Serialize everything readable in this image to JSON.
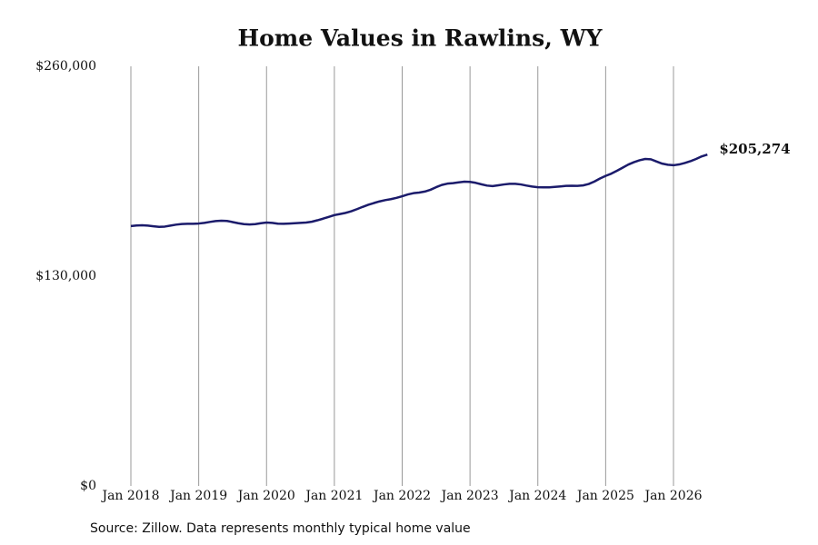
{
  "chart_data": {
    "type": "line",
    "title": "Home Values in Rawlins, WY",
    "source": "Source: Zillow. Data represents monthly typical home value",
    "categories": [
      "Jan 2018",
      null,
      null,
      null,
      null,
      null,
      null,
      null,
      null,
      null,
      null,
      null,
      "Jan 2019",
      null,
      null,
      null,
      null,
      null,
      null,
      null,
      null,
      null,
      null,
      null,
      "Jan 2020",
      null,
      null,
      null,
      null,
      null,
      null,
      null,
      null,
      null,
      null,
      null,
      "Jan 2021",
      null,
      null,
      null,
      null,
      null,
      null,
      null,
      null,
      null,
      null,
      null,
      "Jan 2022",
      null,
      null,
      null,
      null,
      null,
      null,
      null,
      null,
      null,
      null,
      null,
      "Jan 2023",
      null,
      null,
      null,
      null,
      null,
      null,
      null,
      null,
      null,
      null,
      null,
      "Jan 2024",
      null,
      null,
      null,
      null,
      null,
      null,
      null,
      null,
      null,
      null,
      null,
      "Jan 2025",
      null,
      null,
      null,
      null,
      null,
      null,
      null,
      null,
      null,
      null,
      null,
      "Jan 2026",
      null,
      null,
      null,
      null,
      null,
      null
    ],
    "series": [
      {
        "name": "Home value",
        "color": "#1b1b6b",
        "values": [
          161000,
          161400,
          161500,
          161300,
          160900,
          160500,
          160700,
          161300,
          161900,
          162300,
          162400,
          162400,
          162600,
          163000,
          163600,
          164100,
          164300,
          164200,
          163500,
          162800,
          162200,
          162000,
          162200,
          162800,
          163200,
          163000,
          162500,
          162400,
          162600,
          162800,
          163000,
          163200,
          163700,
          164600,
          165600,
          166700,
          167800,
          168500,
          169200,
          170200,
          171500,
          172900,
          174200,
          175300,
          176300,
          177100,
          177700,
          178500,
          179500,
          180600,
          181400,
          181800,
          182400,
          183500,
          185100,
          186500,
          187300,
          187600,
          188100,
          188500,
          188400,
          187800,
          186900,
          186100,
          185800,
          186300,
          186800,
          187200,
          187200,
          186800,
          186100,
          185500,
          185100,
          185000,
          185000,
          185300,
          185600,
          185900,
          186000,
          185900,
          186200,
          187100,
          188600,
          190500,
          192100,
          193500,
          195300,
          197200,
          199100,
          200600,
          201800,
          202600,
          202400,
          201000,
          199700,
          199000,
          198700,
          199200,
          200100,
          201200,
          202600,
          204200,
          205274
        ],
        "value_labels": [
          null,
          null,
          null,
          null,
          null,
          null,
          null,
          null,
          null,
          null,
          null,
          null,
          null,
          null,
          null,
          null,
          null,
          null,
          null,
          null,
          null,
          null,
          null,
          null,
          null,
          null,
          null,
          null,
          null,
          null,
          null,
          null,
          null,
          null,
          null,
          null,
          null,
          null,
          null,
          null,
          null,
          null,
          null,
          null,
          null,
          null,
          null,
          null,
          null,
          null,
          null,
          null,
          null,
          null,
          null,
          null,
          null,
          null,
          null,
          null,
          null,
          null,
          null,
          null,
          null,
          null,
          null,
          null,
          null,
          null,
          null,
          null,
          null,
          null,
          null,
          null,
          null,
          null,
          null,
          null,
          null,
          null,
          null,
          null,
          null,
          null,
          null,
          null,
          null,
          null,
          null,
          null,
          null,
          null,
          null,
          null,
          null,
          null,
          null,
          null,
          null,
          null,
          "$205,274"
        ]
      }
    ],
    "ylim": [
      0,
      260000
    ],
    "yticks": [
      {
        "value": 0,
        "label": "$0"
      },
      {
        "value": 130000,
        "label": "$130,000"
      },
      {
        "value": 260000,
        "label": "$260,000"
      }
    ],
    "grid": "x"
  }
}
